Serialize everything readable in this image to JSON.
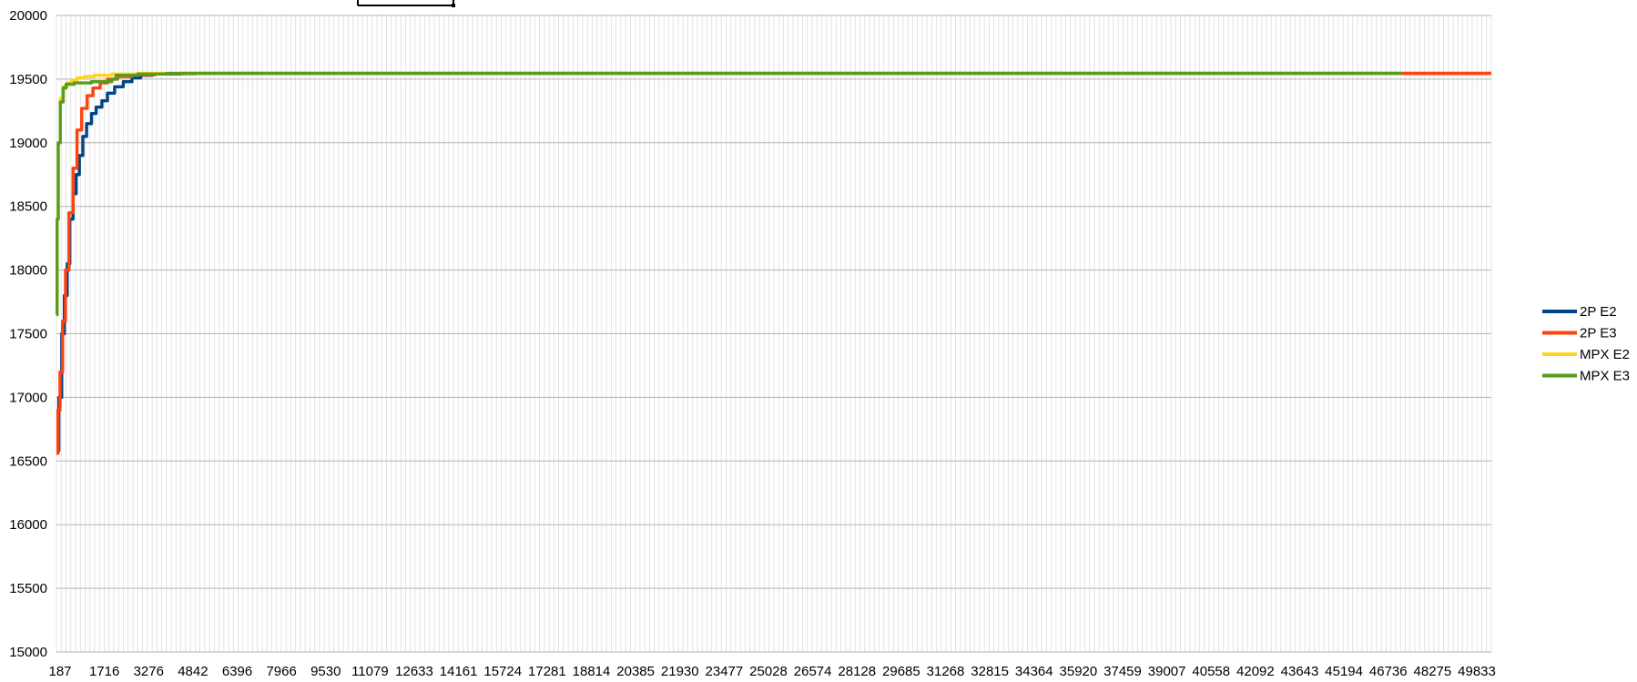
{
  "chart_data": {
    "type": "line",
    "title": "",
    "xlabel": "",
    "ylabel": "",
    "ylim": [
      15000,
      20000
    ],
    "yticks": [
      15000,
      15500,
      16000,
      16500,
      17000,
      17500,
      18000,
      18500,
      19000,
      19500,
      20000
    ],
    "xlim": [
      187,
      49833
    ],
    "xtick_labels": [
      "187",
      "1716",
      "3276",
      "4842",
      "6396",
      "7966",
      "9530",
      "11079",
      "12633",
      "14161",
      "15724",
      "17281",
      "18814",
      "20385",
      "21930",
      "23477",
      "25028",
      "26574",
      "28128",
      "29685",
      "31268",
      "32815",
      "34364",
      "35920",
      "37459",
      "39007",
      "40558",
      "42092",
      "43643",
      "45194",
      "46736",
      "48275",
      "49833"
    ],
    "grid": true,
    "legend_position": "right",
    "series": [
      {
        "name": "2P E2",
        "color": "#004586",
        "points": [
          [
            187,
            16580
          ],
          [
            270,
            17000
          ],
          [
            370,
            17500
          ],
          [
            460,
            17800
          ],
          [
            560,
            18050
          ],
          [
            650,
            18400
          ],
          [
            760,
            18600
          ],
          [
            870,
            18750
          ],
          [
            980,
            18900
          ],
          [
            1100,
            19050
          ],
          [
            1230,
            19150
          ],
          [
            1400,
            19230
          ],
          [
            1560,
            19280
          ],
          [
            1760,
            19330
          ],
          [
            1950,
            19390
          ],
          [
            2200,
            19440
          ],
          [
            2500,
            19480
          ],
          [
            2800,
            19510
          ],
          [
            3100,
            19530
          ],
          [
            3500,
            19540
          ],
          [
            4500,
            19545
          ],
          [
            49833,
            19545
          ]
        ]
      },
      {
        "name": "2P E3",
        "color": "#ff420e",
        "points": [
          [
            187,
            16560
          ],
          [
            240,
            16900
          ],
          [
            310,
            17200
          ],
          [
            400,
            17600
          ],
          [
            500,
            18000
          ],
          [
            620,
            18450
          ],
          [
            760,
            18800
          ],
          [
            900,
            19100
          ],
          [
            1060,
            19270
          ],
          [
            1250,
            19370
          ],
          [
            1450,
            19430
          ],
          [
            1700,
            19470
          ],
          [
            1950,
            19500
          ],
          [
            2300,
            19520
          ],
          [
            2800,
            19535
          ],
          [
            3600,
            19542
          ],
          [
            5000,
            19545
          ],
          [
            49833,
            19545
          ]
        ]
      },
      {
        "name": "MPX E2",
        "color": "#ffd320",
        "points": [
          [
            187,
            17650
          ],
          [
            210,
            18400
          ],
          [
            250,
            19000
          ],
          [
            320,
            19350
          ],
          [
            420,
            19440
          ],
          [
            560,
            19470
          ],
          [
            720,
            19490
          ],
          [
            900,
            19510
          ],
          [
            1150,
            19520
          ],
          [
            1500,
            19530
          ],
          [
            2100,
            19540
          ],
          [
            3000,
            19545
          ],
          [
            46736,
            19545
          ]
        ]
      },
      {
        "name": "MPX E3",
        "color": "#579d1c",
        "points": [
          [
            187,
            17650
          ],
          [
            210,
            18400
          ],
          [
            250,
            19000
          ],
          [
            320,
            19320
          ],
          [
            420,
            19430
          ],
          [
            520,
            19460
          ],
          [
            800,
            19470
          ],
          [
            1400,
            19480
          ],
          [
            2100,
            19500
          ],
          [
            2250,
            19530
          ],
          [
            3000,
            19540
          ],
          [
            4000,
            19545
          ],
          [
            46736,
            19545
          ]
        ]
      }
    ]
  }
}
